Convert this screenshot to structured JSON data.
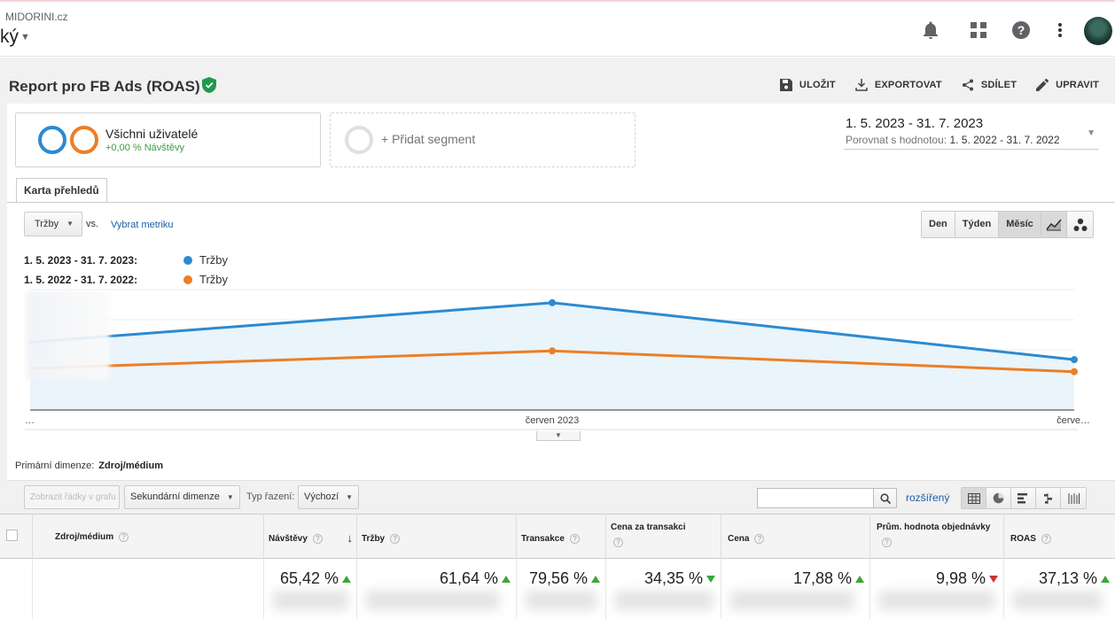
{
  "header": {
    "site": "MIDORINI.cz",
    "view": "ký",
    "icons": [
      "bell-icon",
      "apps-grid-icon",
      "help-icon",
      "more-vert-icon",
      "avatar"
    ]
  },
  "report": {
    "title": "Report pro FB Ads (ROAS)",
    "actions": {
      "save": "ULOŽIT",
      "export": "EXPORTOVAT",
      "share": "SDÍLET",
      "edit": "UPRAVIT"
    }
  },
  "segments": {
    "active_name": "Všichni uživatelé",
    "active_sub": "+0,00 % Návštěvy",
    "add_label": "+ Přidat segment",
    "colors": [
      "#2c8ad1",
      "#ec7e25"
    ]
  },
  "date_range": {
    "main": "1. 5. 2023 - 31. 7. 2023",
    "compare_label": "Porovnat s hodnotou:",
    "compare_value": "1. 5. 2022 - 31. 7. 2022"
  },
  "tabs": {
    "overview": "Karta přehledů"
  },
  "chart_controls": {
    "metric": "Tržby",
    "vs": "vs.",
    "pick_metric": "Vybrat metriku",
    "granularity": [
      "Den",
      "Týden",
      "Měsíc"
    ],
    "granularity_selected": "Měsíc"
  },
  "legend": [
    {
      "range": "1. 5. 2023 - 31. 7. 2023:",
      "label": "Tržby",
      "color": "#2c8ad1"
    },
    {
      "range": "1. 5. 2022 - 31. 7. 2022:",
      "label": "Tržby",
      "color": "#ec7e25"
    }
  ],
  "chart_data": {
    "type": "area",
    "x_labels": [
      "…",
      "červen 2023",
      "červe…"
    ],
    "grid": true,
    "series": [
      {
        "values": [
          0.62,
          0.98,
          0.46
        ],
        "color": "#2c8ad1"
      },
      {
        "values": [
          0.38,
          0.54,
          0.35
        ],
        "color": "#ec7e25"
      }
    ],
    "ylim": [
      0,
      1.1
    ]
  },
  "table_controls": {
    "primary_dim_label": "Primární dimenze:",
    "primary_dim_value": "Zdroj/médium",
    "show_rows": "Zobrazit řádky v grafu",
    "secondary_dim": "Sekundární dimenze",
    "sort_label": "Typ řazení:",
    "sort_value": "Výchozí",
    "advanced": "rozšířený"
  },
  "table": {
    "columns": [
      "Zdroj/médium",
      "Návštěvy",
      "Tržby",
      "Transakce",
      "Cena za transakci",
      "Cena",
      "Prům. hodnota objednávky",
      "ROAS"
    ],
    "totals": [
      {
        "value": "65,42 %",
        "trend": "up"
      },
      {
        "value": "61,64 %",
        "trend": "up"
      },
      {
        "value": "79,56 %",
        "trend": "up"
      },
      {
        "value": "34,35 %",
        "trend": "down-good"
      },
      {
        "value": "17,88 %",
        "trend": "up"
      },
      {
        "value": "9,98 %",
        "trend": "down-bad"
      },
      {
        "value": "37,13 %",
        "trend": "up"
      }
    ]
  }
}
